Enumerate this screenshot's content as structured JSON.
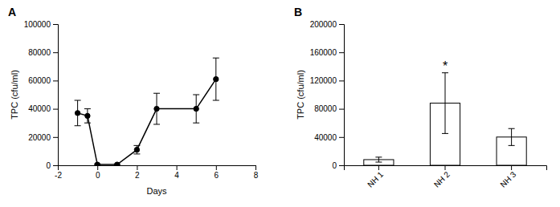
{
  "chart_data": [
    {
      "type": "line",
      "title": "A",
      "x": [
        -1,
        -0.5,
        0,
        1,
        2,
        3,
        5,
        6
      ],
      "values": [
        37000,
        35000,
        500,
        500,
        11000,
        40000,
        40000,
        61000
      ],
      "yerr": [
        9000,
        5000,
        500,
        500,
        3000,
        11000,
        10000,
        15000
      ],
      "xlabel": "Days",
      "ylabel": "TPC (cfu/ml)",
      "xlim": [
        -2,
        8
      ],
      "ylim": [
        0,
        100000
      ],
      "xticks": [
        -2,
        0,
        2,
        4,
        6,
        8
      ],
      "yticks": [
        0,
        20000,
        40000,
        60000,
        80000,
        100000
      ],
      "color": "#000000",
      "marker": "o"
    },
    {
      "type": "bar",
      "title": "B",
      "categories": [
        "NH 1",
        "NH 2",
        "NH 3"
      ],
      "values": [
        8000,
        88000,
        40000
      ],
      "yerr": [
        3500,
        43000,
        12000
      ],
      "ylabel": "TPC (cfu/ml)",
      "ylim": [
        0,
        200000
      ],
      "yticks": [
        0,
        40000,
        80000,
        120000,
        160000,
        200000
      ],
      "color": "#ffffff",
      "annotations": [
        {
          "text": "*",
          "x": "NH 2"
        }
      ]
    }
  ]
}
